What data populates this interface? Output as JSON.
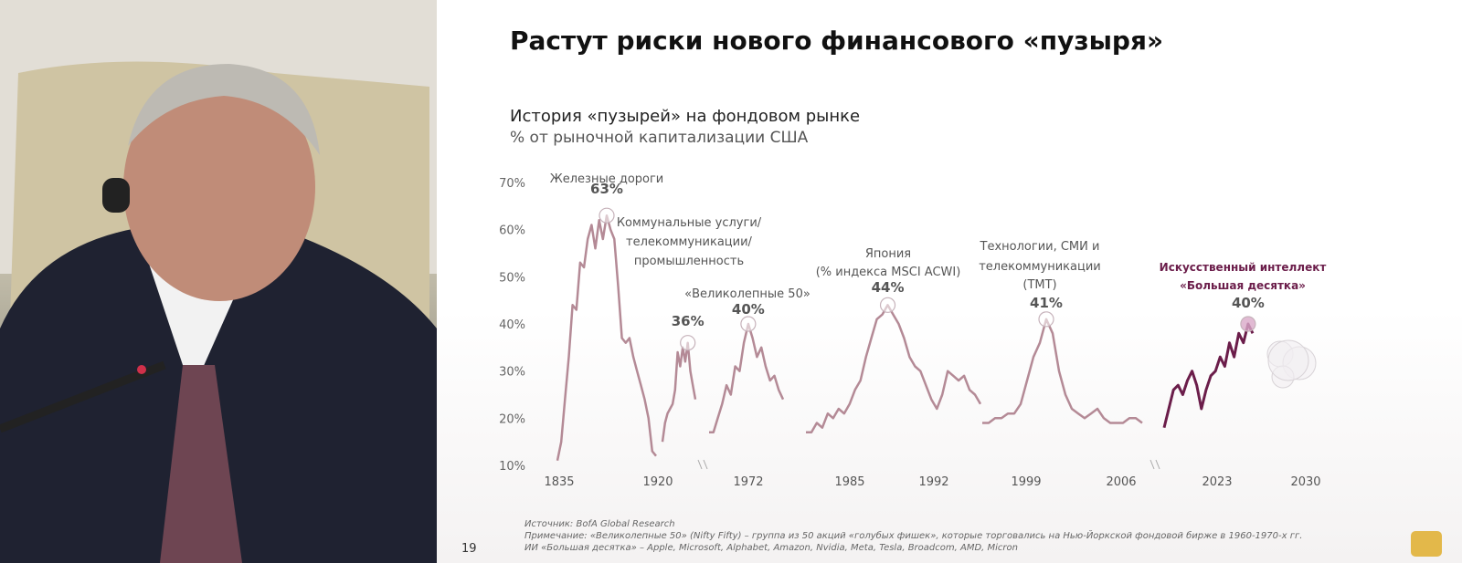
{
  "slide": {
    "title": "Растут риски нового финансового «пузыря»",
    "page_number": "19",
    "footnotes": [
      "Источник: BofA Global Research",
      "Примечание: «Великолепные 50» (Nifty Fifty) – группа из 50 акций «голубых фишек», которые торговались на Нью-Йоркской фондовой бирже в 1960-1970-х гг.",
      "ИИ «Большая десятка» – Apple, Microsoft, Alphabet, Amazon, Nvidia, Meta, Tesla, Broadcom, AMD, Micron"
    ]
  },
  "colors": {
    "history_line": "#b48a96",
    "ai_line": "#6b1d4a",
    "label_dark": "#555555",
    "highlight_label": "#6b1d4a"
  },
  "chart_data": {
    "type": "line",
    "title": "История «пузырей» на фондовом рынке",
    "subtitle": "% от рыночной капитализации США",
    "y_unit": "%",
    "ylim": [
      10,
      70
    ],
    "y_ticks": [
      "10%",
      "20%",
      "30%",
      "40%",
      "50%",
      "60%",
      "70%"
    ],
    "x_tick_labels": [
      "1835",
      "1920",
      "1972",
      "1985",
      "1992",
      "1999",
      "2006",
      "2023",
      "2030"
    ],
    "grid": false,
    "legend": "none",
    "series": [
      {
        "name": "Железные дороги",
        "peak_label": "63%",
        "values": [
          11,
          15,
          24,
          33,
          44,
          43,
          53,
          52,
          58,
          61,
          56,
          62,
          58,
          63,
          60,
          58,
          48,
          37,
          36,
          37,
          33,
          30,
          27,
          24,
          20,
          13,
          12
        ]
      },
      {
        "name": "Коммунальные услуги/ телекоммуникации/ промышленность",
        "peak_label": "36%",
        "values": [
          15,
          19,
          21,
          22,
          23,
          26,
          34,
          31,
          35,
          32,
          36,
          30,
          27,
          24
        ]
      },
      {
        "name": "«Великолепные 50»",
        "peak_label": "40%",
        "values": [
          17,
          17,
          20,
          23,
          27,
          25,
          31,
          30,
          36,
          40,
          37,
          33,
          35,
          31,
          28,
          29,
          26,
          24
        ]
      },
      {
        "name": "Япония (% индекса MSCI ACWI)",
        "peak_label": "44%",
        "values": [
          17,
          17,
          19,
          18,
          21,
          20,
          22,
          21,
          23,
          26,
          28,
          33,
          37,
          41,
          42,
          44,
          42,
          40,
          37,
          33,
          31,
          30,
          27,
          24,
          22,
          25,
          30,
          29,
          28,
          29,
          26,
          25,
          23
        ]
      },
      {
        "name": "Технологии, СМИ и телекоммуникации (ТМТ)",
        "peak_label": "41%",
        "values": [
          19,
          19,
          20,
          20,
          21,
          21,
          23,
          28,
          33,
          36,
          41,
          38,
          30,
          25,
          22,
          21,
          20,
          21,
          22,
          20,
          19,
          19,
          19,
          20,
          20,
          19
        ]
      },
      {
        "name": "Искусственный интеллект «Большая десятка»",
        "peak_label": "40%",
        "highlight": true,
        "values": [
          18,
          22,
          26,
          27,
          25,
          28,
          30,
          27,
          22,
          26,
          29,
          30,
          33,
          31,
          36,
          33,
          38,
          36,
          40,
          38
        ]
      }
    ]
  }
}
